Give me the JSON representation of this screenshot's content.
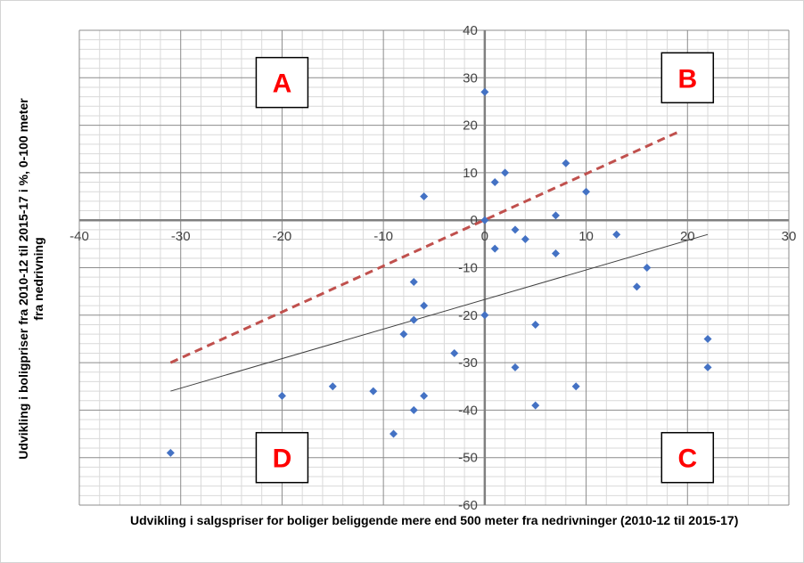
{
  "chart_data": {
    "type": "scatter",
    "xlabel": "Udvikling i salgspriser for boliger beliggende mere end 500 meter fra nedrivninger (2010-12 til 2015-17)",
    "ylabel_lines": [
      "Udvikling i boligpriser fra 2010-12 til 2015-17 i %, 0-100 meter",
      "fra  nedrivning"
    ],
    "xlim": [
      -40,
      30
    ],
    "ylim": [
      -60,
      40
    ],
    "x_ticks": [
      -40,
      -30,
      -20,
      -10,
      0,
      10,
      20,
      30
    ],
    "y_ticks": [
      -60,
      -50,
      -40,
      -30,
      -20,
      -10,
      0,
      10,
      20,
      30,
      40
    ],
    "grid": true,
    "marker_color": "#4472c4",
    "points": [
      {
        "x": 0,
        "y": 27
      },
      {
        "x": 2,
        "y": 10
      },
      {
        "x": 1,
        "y": 8
      },
      {
        "x": 8,
        "y": 12
      },
      {
        "x": 10,
        "y": 6
      },
      {
        "x": -6,
        "y": 5
      },
      {
        "x": 7,
        "y": 1
      },
      {
        "x": 0,
        "y": 0
      },
      {
        "x": 3,
        "y": -2
      },
      {
        "x": 4,
        "y": -4
      },
      {
        "x": 13,
        "y": -3
      },
      {
        "x": 1,
        "y": -6
      },
      {
        "x": 7,
        "y": -7
      },
      {
        "x": 16,
        "y": -10
      },
      {
        "x": 15,
        "y": -14
      },
      {
        "x": -7,
        "y": -13
      },
      {
        "x": -6,
        "y": -18
      },
      {
        "x": -7,
        "y": -21
      },
      {
        "x": 0,
        "y": -20
      },
      {
        "x": 5,
        "y": -22
      },
      {
        "x": -8,
        "y": -24
      },
      {
        "x": 22,
        "y": -25
      },
      {
        "x": -3,
        "y": -28
      },
      {
        "x": 3,
        "y": -31
      },
      {
        "x": 22,
        "y": -31
      },
      {
        "x": -15,
        "y": -35
      },
      {
        "x": -11,
        "y": -36
      },
      {
        "x": 9,
        "y": -35
      },
      {
        "x": -20,
        "y": -37
      },
      {
        "x": -6,
        "y": -37
      },
      {
        "x": -7,
        "y": -40
      },
      {
        "x": 5,
        "y": -39
      },
      {
        "x": -9,
        "y": -45
      },
      {
        "x": -31,
        "y": -49
      }
    ],
    "lines": [
      {
        "name": "dashed",
        "x": [
          -31,
          19
        ],
        "y": [
          -30,
          18.5
        ],
        "color": "#c0504d",
        "dash": true
      },
      {
        "name": "solid",
        "x": [
          -31,
          22
        ],
        "y": [
          -36,
          -3
        ],
        "color": "#404040",
        "dash": false
      }
    ],
    "quadrant_labels": [
      {
        "text": "A",
        "x": -20,
        "y": 29
      },
      {
        "text": "B",
        "x": 20,
        "y": 30
      },
      {
        "text": "D",
        "x": -20,
        "y": -50
      },
      {
        "text": "C",
        "x": 20,
        "y": -50
      }
    ],
    "quadrant_label_color": "#ff0000"
  }
}
